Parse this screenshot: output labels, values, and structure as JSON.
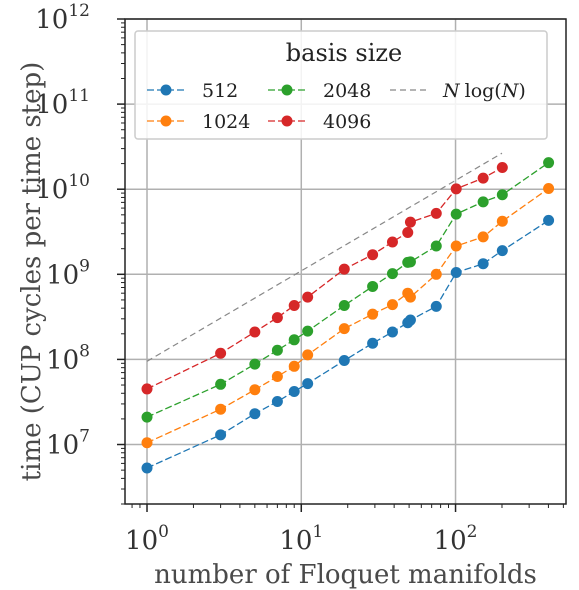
{
  "chart_data": {
    "type": "line",
    "xscale": "log",
    "yscale": "log",
    "xlim": [
      0.72,
      520
    ],
    "ylim": [
      2000000,
      1000000000000
    ],
    "xlabel": "number of Floquet manifolds",
    "ylabel": "time (CUP cycles per time step)",
    "grid": true,
    "x_ticks": [
      {
        "base": "10",
        "exp": "0",
        "value": 1
      },
      {
        "base": "10",
        "exp": "1",
        "value": 10
      },
      {
        "base": "10",
        "exp": "2",
        "value": 100
      }
    ],
    "y_ticks": [
      {
        "base": "10",
        "exp": "7",
        "value": 10000000
      },
      {
        "base": "10",
        "exp": "8",
        "value": 100000000
      },
      {
        "base": "10",
        "exp": "9",
        "value": 1000000000
      },
      {
        "base": "10",
        "exp": "10",
        "value": 10000000000
      },
      {
        "base": "10",
        "exp": "11",
        "value": 100000000000
      },
      {
        "base": "10",
        "exp": "12",
        "value": 1000000000000
      }
    ],
    "legend": {
      "title": "basis size",
      "placement": "top"
    },
    "series": [
      {
        "name": "512",
        "color": "#1f77b4",
        "x": [
          1,
          3,
          5,
          7,
          9,
          11,
          19,
          29,
          39,
          49,
          51,
          75,
          101,
          151,
          201,
          401
        ],
        "y": [
          5300000,
          13000000,
          23000000,
          32000000,
          42000000,
          52000000,
          97000000,
          155000000,
          210000000,
          270000000,
          290000000,
          420000000,
          1050000000,
          1330000000,
          1900000000,
          4300000000
        ]
      },
      {
        "name": "1024",
        "color": "#ff7f0e",
        "x": [
          1,
          3,
          5,
          7,
          9,
          11,
          19,
          29,
          39,
          49,
          51,
          75,
          101,
          151,
          201,
          401
        ],
        "y": [
          10500000,
          26000000,
          44000000,
          63000000,
          83000000,
          113000000,
          230000000,
          340000000,
          440000000,
          600000000,
          540000000,
          1000000000,
          2150000000,
          2750000000,
          4200000000,
          10200000000
        ]
      },
      {
        "name": "2048",
        "color": "#2ca02c",
        "x": [
          1,
          3,
          5,
          7,
          9,
          11,
          19,
          29,
          39,
          49,
          51,
          75,
          101,
          151,
          201,
          401
        ],
        "y": [
          21000000,
          51000000,
          88000000,
          128000000,
          170000000,
          215000000,
          430000000,
          720000000,
          1020000000,
          1380000000,
          1400000000,
          2150000000,
          5100000000,
          7100000000,
          8600000000,
          20500000000
        ]
      },
      {
        "name": "4096",
        "color": "#d62728",
        "x": [
          1,
          3,
          5,
          7,
          9,
          11,
          19,
          29,
          39,
          49,
          51,
          75,
          101,
          151,
          201
        ],
        "y": [
          45000000,
          118000000,
          210000000,
          310000000,
          430000000,
          540000000,
          1150000000,
          1700000000,
          2400000000,
          3100000000,
          4100000000,
          5200000000,
          10100000000,
          13500000000,
          18000000000
        ]
      }
    ],
    "reference_line": {
      "name": "N log(N)",
      "label_parts": [
        "N",
        "log(",
        "N",
        ")"
      ],
      "color": "#888888",
      "style": "dashed",
      "x": [
        1,
        200
      ],
      "y": [
        95000000,
        26500000000
      ]
    }
  }
}
